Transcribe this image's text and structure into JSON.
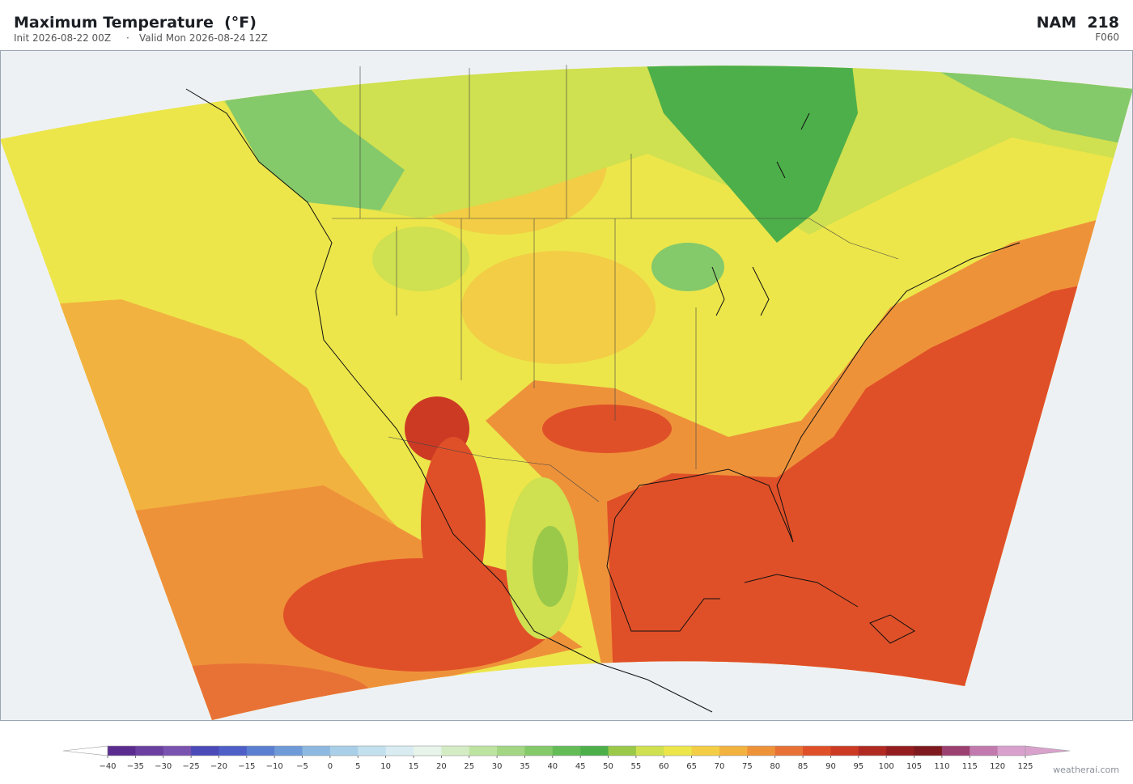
{
  "header": {
    "title": "Maximum Temperature  (°F)",
    "init": "Init 2026-08-22 00Z",
    "separator": "·",
    "valid": "Valid Mon 2026-08-24 12Z",
    "model": "NAM  218",
    "forecast": "F060"
  },
  "colorbar": {
    "ticks": [
      {
        "value": -40,
        "label": "−40"
      },
      {
        "value": -35,
        "label": "−35"
      },
      {
        "value": -30,
        "label": "−30"
      },
      {
        "value": -25,
        "label": "−25"
      },
      {
        "value": -20,
        "label": "−20"
      },
      {
        "value": -15,
        "label": "−15"
      },
      {
        "value": -10,
        "label": "−10"
      },
      {
        "value": -5,
        "label": "−5"
      },
      0,
      5,
      10,
      15,
      20,
      25,
      30,
      35,
      40,
      45,
      50,
      55,
      60,
      65,
      70,
      75,
      80,
      85,
      90,
      95,
      100,
      105,
      110,
      115,
      120,
      125
    ],
    "colors": [
      "#5b2c8f",
      "#6b3fa0",
      "#7a52b0",
      "#4a4ab8",
      "#4f5fc8",
      "#5b7fd0",
      "#6f9ad8",
      "#8db9e0",
      "#a9cfe8",
      "#c2e0ee",
      "#d8ecf2",
      "#e6f4ea",
      "#d4ecc4",
      "#bde3a0",
      "#a2d683",
      "#84c96a",
      "#64bc57",
      "#4daf4a",
      "#9ac94a",
      "#cfe050",
      "#ece64a",
      "#f3cd45",
      "#f2b23f",
      "#ee923a",
      "#e87235",
      "#e05028",
      "#cc3a24",
      "#b02a22",
      "#941d20",
      "#7e1a1f",
      "#9b4070",
      "#c27aae",
      "#d8a0cc"
    ],
    "under_color": "#ffffff",
    "over_color": "#d8a2cc"
  },
  "footer": {
    "watermark": "weatherai.com"
  }
}
